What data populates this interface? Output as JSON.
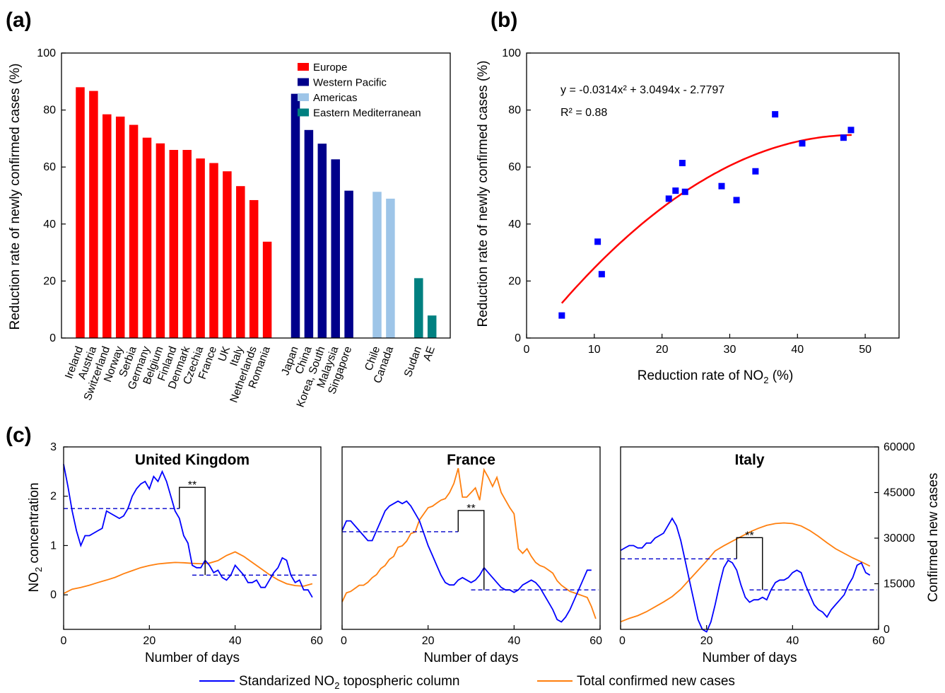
{
  "panel_labels": [
    "(a)",
    "(b)",
    "(c)"
  ],
  "chart_data": [
    {
      "id": "a",
      "type": "bar",
      "ylabel": "Reduction rate of newly confirmed cases (%)",
      "xlabel": "",
      "ylim": [
        0,
        100
      ],
      "yticks": [
        0,
        20,
        40,
        60,
        80,
        100
      ],
      "legend_position": "top-right",
      "groups": [
        {
          "name": "Europe",
          "color": "#ff0000",
          "categories": [
            "Ireland",
            "Austria",
            "Switzerland",
            "Norway",
            "Serbia",
            "Germany",
            "Belgium",
            "Finland",
            "Denmark",
            "Czechia",
            "France",
            "UK",
            "Italy",
            "Netherlands",
            "Romania"
          ],
          "values": [
            88,
            86.7,
            78.5,
            77.7,
            74.8,
            70.3,
            68.3,
            66,
            66,
            63,
            61.4,
            58.5,
            53.3,
            48.4,
            33.8
          ]
        },
        {
          "name": "Western Pacific",
          "color": "#00008b",
          "categories": [
            "Japan",
            "China",
            "Korea, South",
            "Malaysia",
            "Singapore"
          ],
          "values": [
            85.7,
            73,
            68.2,
            62.7,
            51.7
          ]
        },
        {
          "name": "Americas",
          "color": "#9ec5e8",
          "categories": [
            "Chile",
            "Canada"
          ],
          "values": [
            51.3,
            48.9
          ]
        },
        {
          "name": "Eastern Mediterranean",
          "color": "#008080",
          "categories": [
            "Sudan",
            "AE"
          ],
          "values": [
            21,
            7.9
          ]
        }
      ]
    },
    {
      "id": "b",
      "type": "scatter",
      "xlabel_main": "Reduction rate of NO",
      "xlabel_sub": "2",
      "xlabel_tail": " (%)",
      "ylabel": "Reduction rate of newly confirmed cases (%)",
      "xlim": [
        0,
        55
      ],
      "ylim": [
        0,
        100
      ],
      "xticks": [
        0,
        10,
        20,
        30,
        40,
        50
      ],
      "yticks": [
        0,
        20,
        40,
        60,
        80,
        100
      ],
      "equation": "y = -0.0314x² + 3.0494x - 2.7797",
      "r2": "R² = 0.88",
      "fit": {
        "a": -0.0314,
        "b": 3.0494,
        "c": -2.7797,
        "x_range": [
          5.2,
          48
        ],
        "color": "#ff0000"
      },
      "marker_color": "#0000ff",
      "points": [
        {
          "x": 5.2,
          "y": 7.9
        },
        {
          "x": 10.5,
          "y": 33.8
        },
        {
          "x": 11.1,
          "y": 22.4
        },
        {
          "x": 21.0,
          "y": 48.9
        },
        {
          "x": 22.0,
          "y": 51.7
        },
        {
          "x": 23.0,
          "y": 61.4
        },
        {
          "x": 23.4,
          "y": 51.3
        },
        {
          "x": 28.8,
          "y": 53.3
        },
        {
          "x": 31.0,
          "y": 48.4
        },
        {
          "x": 33.8,
          "y": 58.5
        },
        {
          "x": 36.7,
          "y": 78.5
        },
        {
          "x": 40.7,
          "y": 68.3
        },
        {
          "x": 46.8,
          "y": 70.3
        },
        {
          "x": 47.9,
          "y": 73
        }
      ]
    },
    {
      "id": "c",
      "type": "line",
      "xlabel": "Number of days",
      "ylabel_left_main": "NO",
      "ylabel_left_sub": "2",
      "ylabel_left_tail": " concentration",
      "ylabel_right": "Confirmed new cases",
      "xlim": [
        0,
        60
      ],
      "xticks": [
        0,
        20,
        40,
        60
      ],
      "ylim_left": [
        -0.7,
        3
      ],
      "yticks_left": [
        0,
        1,
        2,
        3
      ],
      "ylim_right": [
        0,
        60000
      ],
      "yticks_right": [
        0,
        15000,
        30000,
        45000,
        60000
      ],
      "legend": [
        {
          "main": "Standarized NO",
          "sub": "2",
          "tail": " topospheric column",
          "color": "#0000ff"
        },
        {
          "main": "Total confirmed new cases",
          "sub": "",
          "tail": "",
          "color": "#ff7f0e"
        }
      ],
      "significance": "**",
      "panels": [
        {
          "title": "United Kingdom",
          "no2_days": [
            0,
            1,
            2,
            3,
            4,
            5,
            6,
            7,
            8,
            9,
            10,
            11,
            12,
            13,
            14,
            15,
            16,
            17,
            18,
            19,
            20,
            21,
            22,
            23,
            24,
            25,
            26,
            27,
            28,
            29,
            30,
            31,
            32,
            33,
            34,
            35,
            36,
            37,
            38,
            39,
            40,
            41,
            42,
            43,
            44,
            45,
            46,
            47,
            48,
            49,
            50,
            51,
            52,
            53,
            54,
            55,
            56,
            57,
            58
          ],
          "no2": [
            2.65,
            2.2,
            1.7,
            1.3,
            1.0,
            1.2,
            1.2,
            1.25,
            1.3,
            1.35,
            1.7,
            1.65,
            1.6,
            1.55,
            1.6,
            1.75,
            2.0,
            2.15,
            2.25,
            2.3,
            2.15,
            2.4,
            2.3,
            2.5,
            2.3,
            2.0,
            1.7,
            1.55,
            1.2,
            1.05,
            0.6,
            0.55,
            0.55,
            0.7,
            0.6,
            0.45,
            0.5,
            0.35,
            0.3,
            0.4,
            0.6,
            0.5,
            0.4,
            0.25,
            0.25,
            0.3,
            0.15,
            0.15,
            0.3,
            0.45,
            0.55,
            0.75,
            0.7,
            0.4,
            0.25,
            0.3,
            0.1,
            0.1,
            -0.05
          ],
          "no2_mean_before": 1.75,
          "no2_mean_after": 0.4,
          "cases_days": [
            0,
            2,
            4,
            6,
            8,
            10,
            12,
            14,
            16,
            18,
            20,
            22,
            24,
            26,
            28,
            30,
            32,
            34,
            36,
            38,
            40,
            42,
            44,
            46,
            48,
            50,
            52,
            54,
            56,
            58
          ],
          "cases": [
            11800,
            13200,
            13800,
            14500,
            15400,
            16200,
            17100,
            18300,
            19300,
            20300,
            21000,
            21500,
            21800,
            22000,
            21900,
            21700,
            21600,
            21800,
            22600,
            24300,
            25500,
            24000,
            22000,
            20000,
            18000,
            16300,
            15000,
            14400,
            14200,
            15000
          ]
        },
        {
          "title": "France",
          "no2_days": [
            0,
            1,
            2,
            3,
            4,
            5,
            6,
            7,
            8,
            9,
            10,
            11,
            12,
            13,
            14,
            15,
            16,
            17,
            18,
            19,
            20,
            21,
            22,
            23,
            24,
            25,
            26,
            27,
            28,
            29,
            30,
            31,
            32,
            33,
            34,
            35,
            36,
            37,
            38,
            39,
            40,
            41,
            42,
            43,
            44,
            45,
            46,
            47,
            48,
            49,
            50,
            51,
            52,
            53,
            54,
            55,
            56,
            57,
            58
          ],
          "no2": [
            1.3,
            1.5,
            1.5,
            1.4,
            1.3,
            1.2,
            1.1,
            1.1,
            1.3,
            1.5,
            1.7,
            1.8,
            1.85,
            1.9,
            1.85,
            1.9,
            1.8,
            1.65,
            1.5,
            1.25,
            1.0,
            0.8,
            0.6,
            0.4,
            0.25,
            0.2,
            0.2,
            0.3,
            0.35,
            0.3,
            0.25,
            0.3,
            0.4,
            0.55,
            0.45,
            0.35,
            0.25,
            0.15,
            0.1,
            0.1,
            0.05,
            0.1,
            0.2,
            0.25,
            0.3,
            0.25,
            0.15,
            0.0,
            -0.15,
            -0.3,
            -0.5,
            -0.55,
            -0.45,
            -0.3,
            -0.1,
            0.1,
            0.3,
            0.5,
            0.5
          ],
          "no2_mean_before": 1.28,
          "no2_mean_after": 0.1,
          "cases_days": [
            0,
            1,
            2,
            3,
            4,
            5,
            6,
            7,
            8,
            9,
            10,
            11,
            12,
            13,
            14,
            15,
            16,
            17,
            18,
            19,
            20,
            21,
            22,
            23,
            24,
            25,
            26,
            27,
            28,
            29,
            30,
            31,
            32,
            33,
            34,
            35,
            36,
            37,
            38,
            39,
            40,
            41,
            42,
            43,
            44,
            45,
            46,
            47,
            48,
            49,
            50,
            51,
            52,
            53,
            54,
            55,
            56,
            57,
            58,
            59
          ],
          "cases": [
            9000,
            12000,
            12500,
            13500,
            14500,
            14500,
            15500,
            17000,
            18000,
            20000,
            21000,
            23000,
            24000,
            27000,
            27500,
            29000,
            31500,
            32000,
            36000,
            38000,
            40000,
            40500,
            41500,
            42500,
            43000,
            45000,
            48000,
            53000,
            43500,
            43500,
            45000,
            46500,
            42500,
            52500,
            50000,
            47000,
            50000,
            45000,
            42500,
            40000,
            38000,
            26500,
            25000,
            26500,
            24000,
            22000,
            21000,
            20500,
            19500,
            18500,
            16000,
            14500,
            13500,
            12500,
            12000,
            11500,
            11000,
            10500,
            7500,
            3500
          ],
          "no2_mean_after_val": 0.1
        },
        {
          "title": "Italy",
          "no2_days": [
            0,
            1,
            2,
            3,
            4,
            5,
            6,
            7,
            8,
            9,
            10,
            11,
            12,
            13,
            14,
            15,
            16,
            17,
            18,
            19,
            20,
            21,
            22,
            23,
            24,
            25,
            26,
            27,
            28,
            29,
            30,
            31,
            32,
            33,
            34,
            35,
            36,
            37,
            38,
            39,
            40,
            41,
            42,
            43,
            44,
            45,
            46,
            47,
            48,
            49,
            50,
            51,
            52,
            53,
            54,
            55,
            56,
            57,
            58
          ],
          "no2": [
            0.9,
            0.95,
            1.0,
            1.0,
            0.95,
            0.95,
            1.05,
            1.05,
            1.15,
            1.2,
            1.25,
            1.4,
            1.55,
            1.4,
            1.1,
            0.7,
            0.3,
            -0.1,
            -0.5,
            -0.7,
            -0.75,
            -0.55,
            -0.2,
            0.2,
            0.55,
            0.7,
            0.65,
            0.5,
            0.2,
            -0.05,
            -0.15,
            -0.1,
            -0.1,
            -0.05,
            -0.1,
            0.1,
            0.25,
            0.3,
            0.3,
            0.35,
            0.45,
            0.5,
            0.45,
            0.2,
            0.0,
            -0.2,
            -0.3,
            -0.35,
            -0.45,
            -0.3,
            -0.2,
            -0.1,
            0.0,
            0.2,
            0.35,
            0.6,
            0.65,
            0.45,
            0.4
          ],
          "no2_mean_before": 0.73,
          "no2_mean_after": 0.1,
          "cases_days": [
            0,
            2,
            4,
            6,
            8,
            10,
            12,
            14,
            16,
            18,
            20,
            22,
            24,
            26,
            28,
            30,
            32,
            34,
            36,
            38,
            40,
            42,
            44,
            46,
            48,
            50,
            52,
            54,
            56,
            58
          ],
          "cases": [
            2500,
            3600,
            4500,
            5800,
            7400,
            9000,
            10800,
            13200,
            16300,
            19400,
            22500,
            25800,
            27500,
            29000,
            30500,
            32000,
            33200,
            34200,
            34800,
            35000,
            34800,
            34000,
            32500,
            30600,
            28500,
            26500,
            25000,
            23500,
            22200,
            20800
          ]
        }
      ]
    }
  ]
}
